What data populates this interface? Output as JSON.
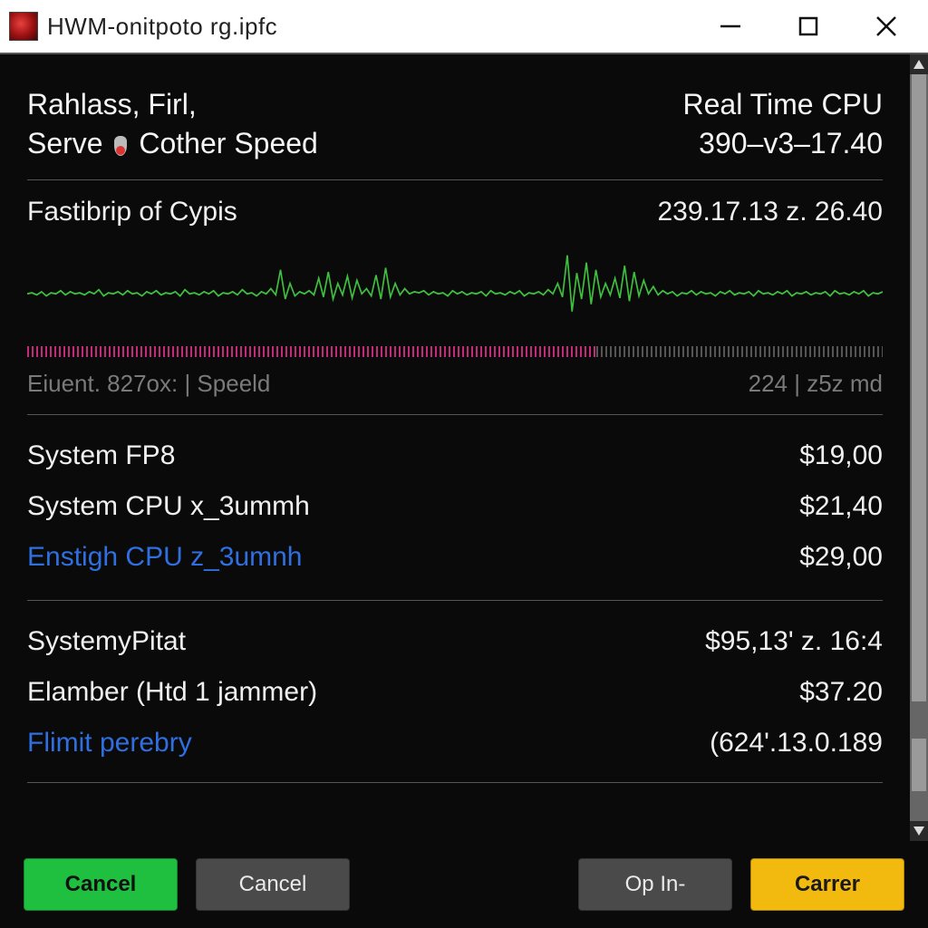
{
  "window": {
    "title": "HWM-onitpoto rg.ipfc",
    "icon_colors": {
      "inner": "#e84040",
      "mid": "#9a1010",
      "outer": "#3a0a0a"
    }
  },
  "colors": {
    "page_bg": "#0a0a0a",
    "text": "#f0f0f0",
    "muted": "#7a7a7a",
    "divider": "#555555",
    "link": "#2f6fe0",
    "chart_line": "#3fbf3f",
    "tick_active": "#c22a7a",
    "tick_inactive": "#555555",
    "btn_green": "#1fbf3f",
    "btn_gray": "#4a4a4a",
    "btn_yellow": "#f2b90f",
    "scrollbar_track": "#666666",
    "scrollbar_thumb": "#9a9a9a"
  },
  "typography": {
    "title_fontsize": 26,
    "header_fontsize": 32,
    "section_fontsize": 30,
    "footer_fontsize": 26,
    "button_fontsize": 24
  },
  "header": {
    "left_line1": "Rahlass, Firl,",
    "left_line2_pre": "Serve",
    "left_line2_post": "Cother Speed",
    "right_line1": "Real Time CPU",
    "right_line2": "390–v3–17.40"
  },
  "chart_section": {
    "title_left": "Fastibrip of Cypis",
    "title_right": "239.17.13 z. 26.40",
    "footer_left": "Eiuent. 827ox: | Speeld",
    "footer_right": "224 | z5z md",
    "chart": {
      "type": "line",
      "line_color": "#3fbf3f",
      "line_width": 1.6,
      "background_color": "#0a0a0a",
      "ylim": [
        0,
        100
      ],
      "baseline_y": 45,
      "n_points": 180,
      "tick_active_fraction": 0.665,
      "points": [
        45,
        46,
        44,
        47,
        43,
        46,
        45,
        48,
        44,
        47,
        45,
        46,
        44,
        47,
        45,
        49,
        43,
        46,
        45,
        47,
        44,
        48,
        45,
        46,
        43,
        47,
        45,
        48,
        44,
        46,
        45,
        47,
        43,
        49,
        45,
        46,
        44,
        47,
        45,
        48,
        43,
        46,
        45,
        47,
        44,
        49,
        45,
        46,
        43,
        47,
        45,
        50,
        44,
        68,
        40,
        55,
        43,
        47,
        45,
        48,
        44,
        60,
        42,
        66,
        40,
        55,
        44,
        62,
        41,
        58,
        45,
        50,
        43,
        63,
        40,
        70,
        42,
        55,
        44,
        50,
        45,
        47,
        46,
        48,
        44,
        47,
        45,
        46,
        43,
        48,
        45,
        47,
        44,
        46,
        45,
        47,
        43,
        48,
        45,
        46,
        44,
        47,
        45,
        48,
        43,
        46,
        45,
        47,
        44,
        49,
        45,
        55,
        42,
        82,
        28,
        65,
        40,
        75,
        35,
        68,
        42,
        55,
        44,
        60,
        41,
        72,
        38,
        66,
        43,
        58,
        45,
        52,
        44,
        48,
        45,
        47,
        43,
        46,
        45,
        48,
        44,
        47,
        45,
        46,
        43,
        47,
        45,
        48,
        44,
        46,
        45,
        47,
        43,
        48,
        45,
        46,
        44,
        47,
        45,
        48,
        43,
        46,
        45,
        47,
        44,
        46,
        45,
        47,
        43,
        48,
        45,
        46,
        44,
        47,
        45,
        48,
        43,
        46,
        45,
        47
      ]
    }
  },
  "metrics_group1": [
    {
      "label": "System FP8",
      "value": "$19,00",
      "link": false
    },
    {
      "label": "System CPU x_3ummh",
      "value": "$21,40",
      "link": false
    },
    {
      "label": "Enstigh CPU z_3umnh",
      "value": "$29,00",
      "link": true
    }
  ],
  "metrics_group2": [
    {
      "label": "SystemyPitat",
      "value": "$95,13' z. 16:4",
      "link": false
    },
    {
      "label": "Elamber (Htd 1 jammer)",
      "value": "$37.20",
      "link": false
    },
    {
      "label": "Flimit perebry",
      "value": "(624'.13.0.189",
      "link": true
    }
  ],
  "buttons": {
    "cancel_green": "Cancel",
    "cancel_gray": "Cancel",
    "op_in": "Op In-",
    "carrer": "Carrer"
  }
}
